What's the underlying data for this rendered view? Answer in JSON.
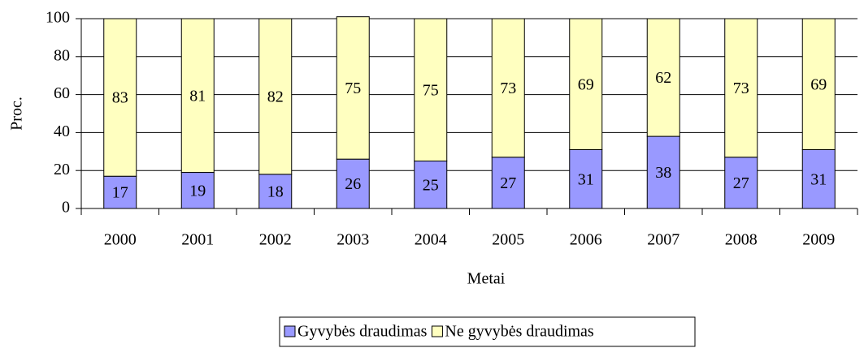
{
  "chart_data": {
    "type": "stacked_bar",
    "categories": [
      "2000",
      "2001",
      "2002",
      "2003",
      "2004",
      "2005",
      "2006",
      "2007",
      "2008",
      "2009"
    ],
    "series": [
      {
        "name": "Gyvybės draudimas",
        "color": "#9999ff",
        "values": [
          17,
          19,
          18,
          26,
          25,
          27,
          31,
          38,
          27,
          31
        ]
      },
      {
        "name": "Ne gyvybės draudimas",
        "color": "#ffffc0",
        "values": [
          83,
          81,
          82,
          75,
          75,
          73,
          69,
          62,
          73,
          69
        ]
      }
    ],
    "x_label": "Metai",
    "y_label": "Proc.",
    "ylim": [
      0,
      100
    ],
    "yticks": [
      0,
      20,
      40,
      60,
      80,
      100
    ],
    "grid": true,
    "legend": "bottom"
  }
}
